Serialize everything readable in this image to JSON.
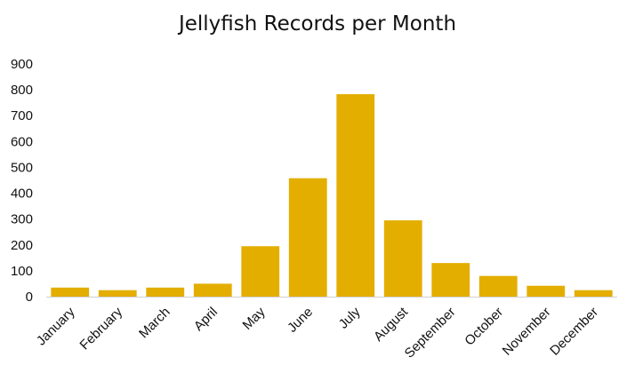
{
  "chart_data": {
    "type": "bar",
    "title": "Jellyfish Records per Month",
    "xlabel": "",
    "ylabel": "",
    "categories": [
      "January",
      "February",
      "March",
      "April",
      "May",
      "June",
      "July",
      "August",
      "September",
      "October",
      "November",
      "December"
    ],
    "values": [
      35,
      25,
      35,
      50,
      195,
      458,
      783,
      295,
      130,
      80,
      42,
      25
    ],
    "ylim": [
      0,
      900
    ],
    "yticks": [
      0,
      100,
      200,
      300,
      400,
      500,
      600,
      700,
      800,
      900
    ],
    "grid": false,
    "legend": "none",
    "bar_color": "#E3AE00",
    "axis_color": "#D0D0D0"
  }
}
